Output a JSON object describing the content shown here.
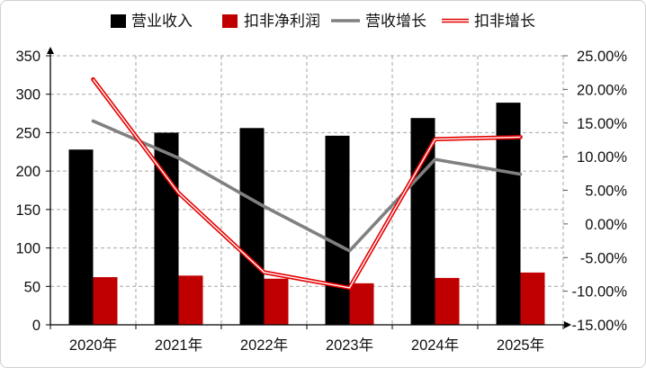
{
  "chart_data": {
    "type": "bar",
    "categories": [
      "2020年",
      "2021年",
      "2022年",
      "2023年",
      "2024年",
      "2025年"
    ],
    "y_left": {
      "ylim": [
        0,
        350
      ],
      "tick_labels": [
        "0",
        "50",
        "100",
        "150",
        "200",
        "250",
        "300",
        "350"
      ]
    },
    "y_right": {
      "ylim": [
        -15,
        25
      ],
      "tick_labels": [
        "-15.00%",
        "-10.00%",
        "-5.00%",
        "0.00%",
        "5.00%",
        "10.00%",
        "15.00%",
        "20.00%",
        "25.00%"
      ]
    },
    "series": [
      {
        "name": "营业收入",
        "type": "bar",
        "y_axis": "left",
        "color": "#000000",
        "values": [
          228,
          250,
          256,
          246,
          269,
          289
        ]
      },
      {
        "name": "扣非净利润",
        "type": "bar",
        "y_axis": "left",
        "color": "#C00000",
        "values": [
          62,
          64,
          60,
          54,
          61,
          68
        ]
      },
      {
        "name": "营收增长",
        "type": "line",
        "y_axis": "right",
        "color": "#808080",
        "values": [
          15.3,
          9.8,
          2.6,
          -4.0,
          9.6,
          7.4
        ]
      },
      {
        "name": "扣非增长",
        "type": "line",
        "y_axis": "right",
        "color": "#E60000",
        "inner_color": "#FFFFFF",
        "values": [
          21.5,
          4.6,
          -7.2,
          -9.5,
          12.6,
          12.9
        ]
      }
    ],
    "legend": "top",
    "grid": true
  }
}
